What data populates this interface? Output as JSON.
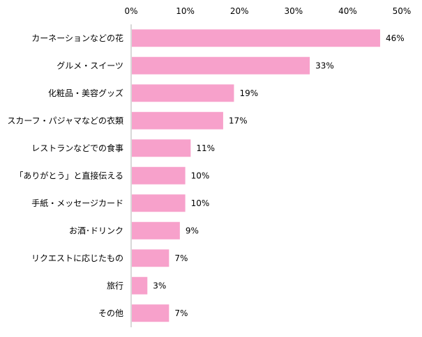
{
  "chart_data": {
    "type": "bar",
    "orientation": "horizontal",
    "title": "",
    "xlabel": "",
    "ylabel": "",
    "xlim": [
      0,
      50
    ],
    "ticks": [
      0,
      10,
      20,
      30,
      40,
      50
    ],
    "tick_labels": [
      "0%",
      "10%",
      "20%",
      "30%",
      "40%",
      "50%"
    ],
    "axis_position": "top",
    "grid": false,
    "legend": "none",
    "categories": [
      "カーネーションなどの花",
      "グルメ・スイーツ",
      "化粧品・美容グッズ",
      "スカーフ・パジャマなどの衣類",
      "レストランなどでの食事",
      "「ありがとう」と直接伝える",
      "手紙・メッセージカード",
      "お酒･ドリンク",
      "リクエストに応じたもの",
      "旅行",
      "その他"
    ],
    "values": [
      46,
      33,
      19,
      17,
      11,
      10,
      10,
      9,
      7,
      3,
      7
    ],
    "value_labels": [
      "46%",
      "33%",
      "19%",
      "17%",
      "11%",
      "10%",
      "10%",
      "9%",
      "7%",
      "3%",
      "7%"
    ],
    "colors": {
      "bar": "#f7a1cb",
      "axis": "#b0b0b0",
      "text": "#000000"
    }
  }
}
